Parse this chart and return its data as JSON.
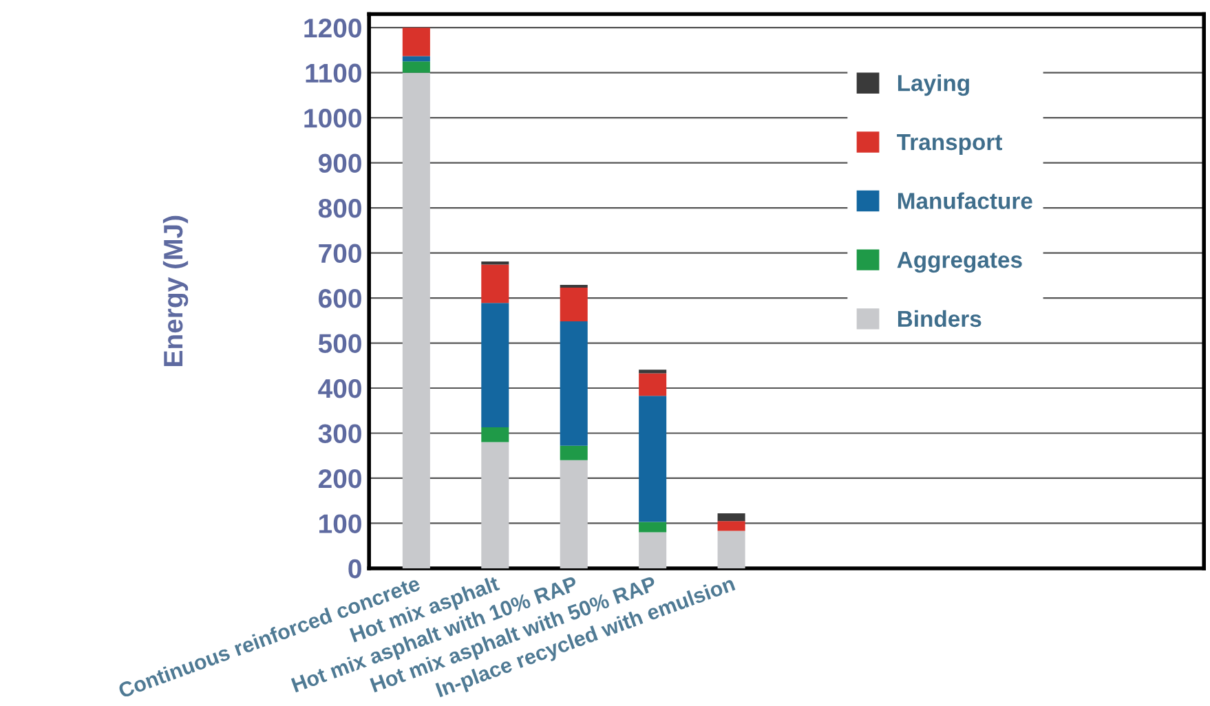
{
  "chart_data": {
    "type": "bar",
    "stacked": true,
    "ylabel": "Energy (MJ)",
    "categories": [
      "Continuous reinforced concrete",
      "Hot mix asphalt",
      "Hot mix asphalt with 10% RAP",
      "Hot mix asphalt with 50% RAP",
      "In-place recycled with emulsion"
    ],
    "series": [
      {
        "name": "Binders",
        "color": "#c8c9cc",
        "values": [
          1100,
          280,
          240,
          80,
          83
        ]
      },
      {
        "name": "Aggregates",
        "color": "#1f9a48",
        "values": [
          25,
          33,
          32,
          23,
          0
        ]
      },
      {
        "name": "Manufacture",
        "color": "#1467a0",
        "values": [
          12,
          276,
          276,
          280,
          0
        ]
      },
      {
        "name": "Transport",
        "color": "#d9332b",
        "values": [
          63,
          85,
          75,
          50,
          22
        ]
      },
      {
        "name": "Laying",
        "color": "#3a3a3a",
        "values": [
          0,
          7,
          6,
          8,
          17
        ]
      }
    ],
    "ylim": [
      0,
      1230
    ],
    "yticks": [
      0,
      100,
      200,
      300,
      400,
      500,
      600,
      700,
      800,
      900,
      1000,
      1100,
      1200
    ],
    "grid": "y",
    "legend": "top right"
  }
}
